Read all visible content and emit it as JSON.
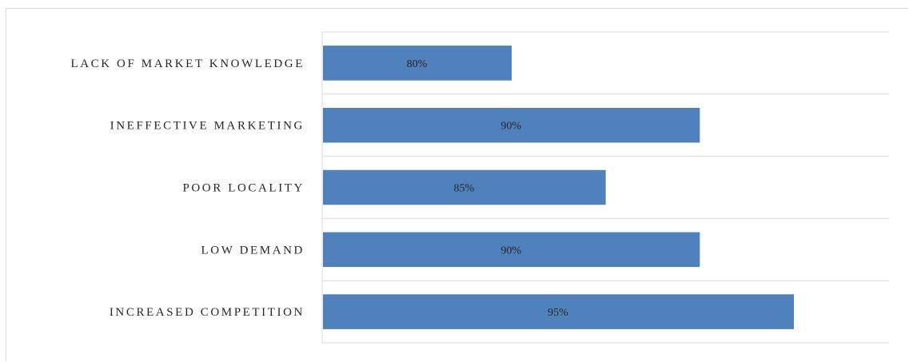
{
  "chart_data": {
    "type": "bar",
    "orientation": "horizontal",
    "categories": [
      "LACK OF MARKET KNOWLEDGE",
      "INEFFECTIVE MARKETING",
      "POOR LOCALITY",
      "LOW DEMAND",
      "INCREASED COMPETITION"
    ],
    "values": [
      80,
      90,
      85,
      90,
      95
    ],
    "value_labels": [
      "80%",
      "90%",
      "85%",
      "90%",
      "95%"
    ],
    "xlim": [
      0,
      100
    ],
    "bar_color": "#4f81bd",
    "grid": true,
    "legend": "none",
    "title": "",
    "xlabel": "",
    "ylabel": ""
  }
}
